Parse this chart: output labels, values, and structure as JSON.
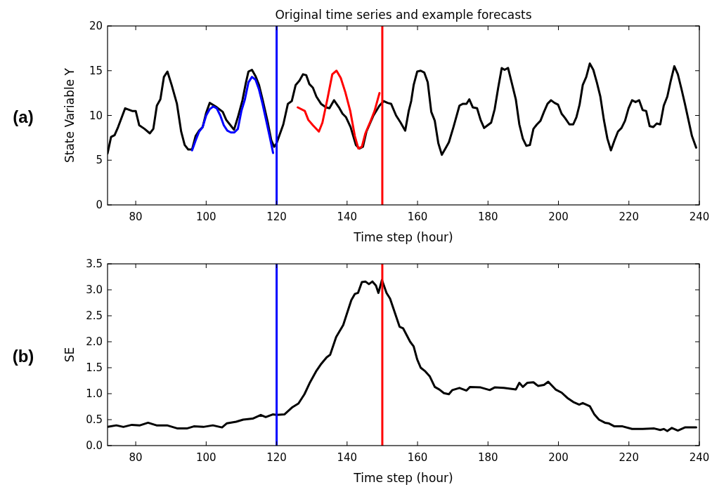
{
  "chart_data": [
    {
      "type": "line",
      "title": "Original time series and example forecasts",
      "xlabel": "Time step (hour)",
      "ylabel": "State Variable Y",
      "annotations": [
        "(a)"
      ],
      "xlim": [
        72,
        240
      ],
      "ylim": [
        0,
        20
      ],
      "xticks": [
        80,
        100,
        120,
        140,
        160,
        180,
        200,
        220,
        240
      ],
      "yticks": [
        0,
        5,
        10,
        15,
        20
      ],
      "grid": false,
      "marker": "none",
      "line_style": "solid",
      "ref_lines": [
        {
          "axis": "x",
          "value": 120,
          "color": "#0000ff"
        },
        {
          "axis": "x",
          "value": 150,
          "color": "#ff0000"
        }
      ],
      "series": [
        {
          "color": "#000000",
          "x": [
            72,
            73,
            74,
            75,
            77,
            79,
            80,
            81,
            82.5,
            84,
            85,
            86,
            87,
            88,
            89,
            90.2,
            91.7,
            92.9,
            93.9,
            94.9,
            96,
            97,
            98,
            99,
            100,
            101,
            102.7,
            104.7,
            105.7,
            106.7,
            107.9,
            109,
            110.3,
            111.3,
            112,
            113,
            114,
            115,
            116,
            117.5,
            118.5,
            119.3,
            120,
            121.9,
            123.2,
            124.3,
            125.4,
            126.5,
            127.5,
            128.4,
            129.3,
            130.3,
            131.3,
            132.6,
            134,
            135,
            136.3,
            137.7,
            138.7,
            139.7,
            141,
            142.5,
            143.5,
            144.5,
            145.5,
            147.5,
            149.2,
            150.4,
            151.5,
            152.5,
            153.9,
            155.2,
            156.5,
            157.5,
            158.2,
            158.9,
            159.9,
            160.9,
            161.9,
            162.9,
            163.9,
            164.9,
            165.9,
            166.9,
            167.9,
            168.9,
            170.2,
            171.9,
            172.9,
            173.9,
            174.7,
            175.7,
            176.9,
            177.9,
            178.9,
            179.9,
            180.9,
            181.9,
            182.9,
            183.9,
            184.7,
            185.7,
            186.9,
            187.9,
            188.9,
            189.9,
            190.9,
            191.9,
            192.9,
            193.9,
            194.9,
            195.9,
            196.9,
            197.9,
            198.9,
            199.9,
            200.9,
            201.9,
            203.1,
            204.2,
            205.1,
            206,
            206.9,
            207.9,
            208.9,
            209.9,
            210.9,
            211.9,
            212.9,
            213.9,
            214.9,
            215.9,
            216.9,
            217.9,
            218.9,
            219.9,
            220.9,
            221.9,
            222.9,
            223.9,
            224.9,
            225.9,
            226.9,
            227.9,
            228.9,
            229.9,
            230.9,
            231.9,
            232.9,
            233.9,
            234.9,
            235.9,
            236.9,
            237.9,
            239.1
          ],
          "values": [
            5.75,
            7.6,
            7.8,
            8.7,
            10.8,
            10.5,
            10.5,
            8.9,
            8.5,
            8.0,
            8.5,
            11.1,
            11.8,
            14.3,
            14.9,
            13.4,
            11.3,
            8.2,
            6.7,
            6.2,
            6.2,
            7.7,
            8.3,
            8.7,
            10.3,
            11.4,
            11.0,
            10.4,
            9.5,
            9.0,
            8.4,
            9.8,
            11.7,
            13.7,
            14.9,
            15.1,
            14.4,
            13.4,
            11.8,
            9.2,
            7.2,
            6.5,
            6.9,
            9.0,
            11.3,
            11.6,
            13.4,
            13.9,
            14.6,
            14.5,
            13.5,
            13.1,
            12.1,
            11.3,
            10.9,
            10.8,
            11.7,
            10.9,
            10.2,
            9.8,
            8.7,
            6.7,
            6.3,
            6.5,
            8.2,
            10.0,
            11.1,
            11.6,
            11.4,
            11.3,
            10.0,
            9.2,
            8.3,
            10.5,
            11.6,
            13.4,
            14.9,
            15.0,
            14.8,
            13.7,
            10.4,
            9.4,
            6.9,
            5.6,
            6.3,
            7.0,
            8.7,
            11.1,
            11.3,
            11.3,
            11.8,
            10.9,
            10.8,
            9.5,
            8.6,
            8.9,
            9.2,
            10.7,
            13.1,
            15.3,
            15.1,
            15.3,
            13.4,
            11.8,
            9.0,
            7.4,
            6.6,
            6.7,
            8.5,
            9.0,
            9.4,
            10.4,
            11.3,
            11.7,
            11.4,
            11.2,
            10.2,
            9.7,
            9.0,
            9.0,
            9.8,
            11.2,
            13.4,
            14.3,
            15.8,
            15.1,
            13.7,
            12.1,
            9.5,
            7.4,
            6.1,
            7.2,
            8.2,
            8.6,
            9.4,
            10.8,
            11.7,
            11.5,
            11.7,
            10.6,
            10.5,
            8.8,
            8.7,
            9.1,
            9.0,
            11.1,
            12.1,
            13.9,
            15.5,
            14.6,
            13.0,
            11.3,
            9.5,
            7.7,
            6.4
          ]
        },
        {
          "color": "#0000ff",
          "x": [
            96,
            97,
            98,
            99,
            100,
            101,
            102,
            103,
            104,
            105,
            106,
            107,
            108,
            109,
            110,
            111,
            112,
            113,
            114,
            115,
            116,
            117,
            118,
            119
          ],
          "values": [
            6.1,
            7.2,
            8.2,
            8.7,
            10.0,
            10.7,
            11.0,
            10.8,
            10.0,
            8.9,
            8.3,
            8.1,
            8.1,
            8.5,
            10.5,
            11.8,
            13.7,
            14.3,
            14.0,
            12.9,
            11.3,
            9.5,
            7.7,
            5.8
          ]
        },
        {
          "color": "#ff0000",
          "x": [
            126,
            128,
            129,
            130.3,
            132,
            133,
            134.4,
            135.8,
            137,
            138.2,
            139.5,
            140.9,
            142.2,
            143.2,
            144.2,
            145.2,
            146.5,
            147.8,
            149.2
          ],
          "values": [
            10.9,
            10.5,
            9.5,
            8.9,
            8.2,
            9.2,
            11.8,
            14.6,
            15.0,
            14.2,
            12.6,
            10.5,
            7.7,
            6.3,
            6.5,
            8.0,
            9.2,
            10.5,
            12.5
          ]
        }
      ]
    },
    {
      "type": "line",
      "xlabel": "Time step (hour)",
      "ylabel": "SE",
      "annotations": [
        "(b)"
      ],
      "xlim": [
        72,
        240
      ],
      "ylim": [
        0,
        3.5
      ],
      "xticks": [
        80,
        100,
        120,
        140,
        160,
        180,
        200,
        220,
        240
      ],
      "yticks": [
        {
          "value": 0,
          "label": "0.0"
        },
        {
          "value": 0.5,
          "label": "0.5"
        },
        {
          "value": 1,
          "label": "1.0"
        },
        {
          "value": 1.5,
          "label": "1.5"
        },
        {
          "value": 2,
          "label": "2.0"
        },
        {
          "value": 2.5,
          "label": "2.5"
        },
        {
          "value": 3,
          "label": "3.0"
        },
        {
          "value": 3.5,
          "label": "3.5"
        }
      ],
      "grid": false,
      "marker": "none",
      "line_style": "solid",
      "ref_lines": [
        {
          "axis": "x",
          "value": 120,
          "color": "#0000ff"
        },
        {
          "axis": "x",
          "value": 150,
          "color": "#ff0000"
        }
      ],
      "series": [
        {
          "color": "#000000",
          "x": [
            72,
            74.5,
            76.5,
            78.9,
            81.2,
            83.5,
            85.9,
            88.9,
            91.9,
            94.5,
            96.5,
            99.2,
            101.9,
            104.5,
            105.9,
            108.5,
            110.5,
            113.2,
            115.5,
            116.9,
            118.9,
            120,
            122.2,
            124.5,
            126.2,
            127.9,
            129.5,
            131.2,
            132.5,
            134.2,
            135.2,
            136.9,
            138.9,
            139.9,
            141.2,
            142.2,
            143.1,
            144.2,
            145.2,
            146.2,
            147.2,
            148.2,
            148.9,
            149.9,
            151.2,
            152.2,
            153.5,
            154.9,
            155.9,
            157.9,
            158.9,
            159.9,
            160.9,
            162.2,
            163.5,
            164.9,
            166.2,
            167.5,
            168.9,
            169.9,
            171.9,
            173.9,
            174.9,
            177.9,
            180.5,
            181.9,
            184.5,
            187.9,
            188.9,
            189.9,
            191.2,
            192.9,
            194.2,
            195.9,
            197.1,
            199.2,
            200.9,
            202.5,
            204.2,
            205.9,
            206.9,
            208.9,
            210.2,
            211.5,
            213.2,
            214.2,
            215.9,
            218.2,
            220.9,
            223.9,
            227.2,
            228.9,
            229.9,
            230.9,
            232.2,
            233.9,
            235.9,
            239.1
          ],
          "values": [
            0.36,
            0.39,
            0.36,
            0.4,
            0.39,
            0.44,
            0.39,
            0.39,
            0.33,
            0.33,
            0.37,
            0.36,
            0.39,
            0.35,
            0.43,
            0.46,
            0.5,
            0.52,
            0.59,
            0.55,
            0.6,
            0.59,
            0.6,
            0.74,
            0.81,
            0.99,
            1.22,
            1.43,
            1.56,
            1.7,
            1.75,
            2.09,
            2.32,
            2.53,
            2.8,
            2.92,
            2.94,
            3.15,
            3.16,
            3.11,
            3.16,
            3.08,
            2.94,
            3.19,
            2.94,
            2.83,
            2.57,
            2.29,
            2.26,
            2.0,
            1.91,
            1.66,
            1.5,
            1.43,
            1.33,
            1.13,
            1.08,
            1.01,
            0.99,
            1.07,
            1.11,
            1.06,
            1.13,
            1.12,
            1.07,
            1.12,
            1.11,
            1.08,
            1.21,
            1.13,
            1.21,
            1.22,
            1.15,
            1.17,
            1.23,
            1.08,
            1.02,
            0.92,
            0.84,
            0.79,
            0.82,
            0.76,
            0.6,
            0.5,
            0.44,
            0.43,
            0.37,
            0.37,
            0.32,
            0.32,
            0.33,
            0.3,
            0.32,
            0.28,
            0.34,
            0.29,
            0.35,
            0.35
          ]
        }
      ]
    }
  ]
}
